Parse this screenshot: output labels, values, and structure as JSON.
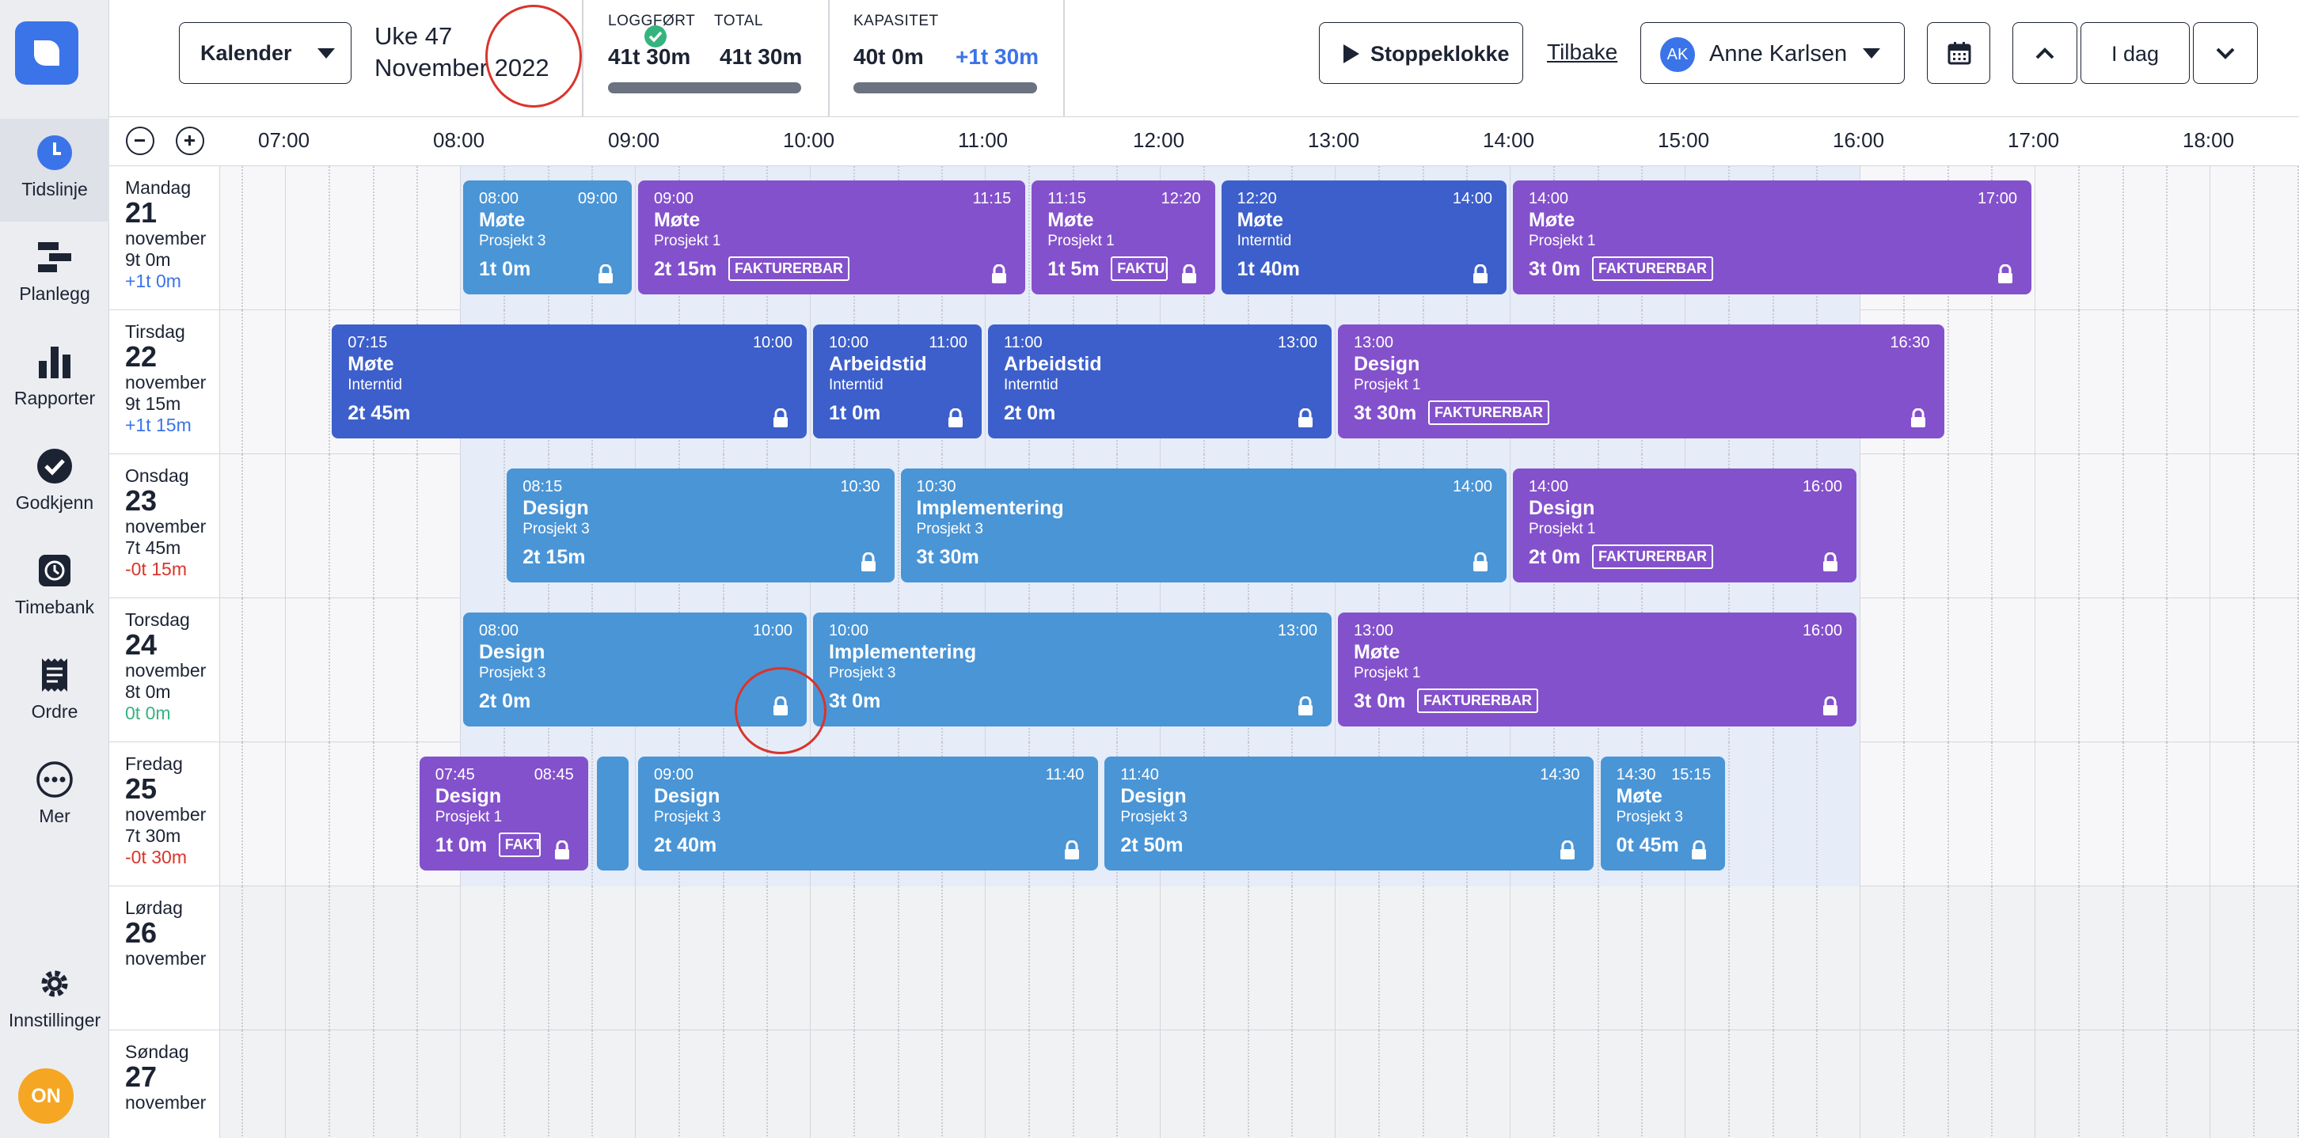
{
  "sidebar": {
    "items": [
      {
        "label": "Tidslinje",
        "icon": "clock-icon",
        "active": true
      },
      {
        "label": "Planlegg",
        "icon": "planner-icon"
      },
      {
        "label": "Rapporter",
        "icon": "bar-chart-icon"
      },
      {
        "label": "Godkjenn",
        "icon": "check-circle-icon"
      },
      {
        "label": "Timebank",
        "icon": "timebank-icon"
      },
      {
        "label": "Ordre",
        "icon": "receipt-icon"
      },
      {
        "label": "Mer",
        "icon": "more-icon"
      }
    ],
    "settings_label": "Innstillinger",
    "user_initials": "ON"
  },
  "topbar": {
    "view_select": "Kalender",
    "week": "Uke 47",
    "month_year": "November 2022",
    "logged_label": "LOGGFØRT",
    "logged_value": "41t 30m",
    "total_label": "TOTAL",
    "total_value": "41t 30m",
    "capacity_label": "KAPASITET",
    "capacity_value": "40t 0m",
    "capacity_diff": "+1t 30m",
    "stopwatch_label": "Stoppeklokke",
    "back_label": "Tilbake",
    "user_initials": "AK",
    "user_name": "Anne Karlsen",
    "today_label": "I dag"
  },
  "timeline": {
    "hours": [
      "07:00",
      "08:00",
      "09:00",
      "10:00",
      "11:00",
      "12:00",
      "13:00",
      "14:00",
      "15:00",
      "16:00",
      "17:00",
      "18:00"
    ]
  },
  "days": [
    {
      "name": "Mandag",
      "num": "21",
      "month": "november",
      "hours": "9t 0m",
      "diff": "+1t 0m",
      "diff_type": "pos",
      "blocks": [
        {
          "start": "08:00",
          "end": "09:00",
          "title": "Møte",
          "project": "Prosjekt 3",
          "duration": "1t 0m",
          "color": "blue",
          "billable": false
        },
        {
          "start": "09:00",
          "end": "11:15",
          "title": "Møte",
          "project": "Prosjekt 1",
          "duration": "2t 15m",
          "color": "purple",
          "billable": true
        },
        {
          "start": "11:15",
          "end": "12:20",
          "title": "Møte",
          "project": "Prosjekt 1",
          "duration": "1t 5m",
          "color": "purple",
          "billable": true
        },
        {
          "start": "12:20",
          "end": "14:00",
          "title": "Møte",
          "project": "Interntid",
          "duration": "1t 40m",
          "color": "navy",
          "billable": false
        },
        {
          "start": "14:00",
          "end": "17:00",
          "title": "Møte",
          "project": "Prosjekt 1",
          "duration": "3t 0m",
          "color": "purple",
          "billable": true
        }
      ]
    },
    {
      "name": "Tirsdag",
      "num": "22",
      "month": "november",
      "hours": "9t 15m",
      "diff": "+1t 15m",
      "diff_type": "pos",
      "blocks": [
        {
          "start": "07:15",
          "end": "10:00",
          "title": "Møte",
          "project": "Interntid",
          "duration": "2t 45m",
          "color": "navy",
          "billable": false
        },
        {
          "start": "10:00",
          "end": "11:00",
          "title": "Arbeidstid",
          "project": "Interntid",
          "duration": "1t 0m",
          "color": "navy",
          "billable": false
        },
        {
          "start": "11:00",
          "end": "13:00",
          "title": "Arbeidstid",
          "project": "Interntid",
          "duration": "2t 0m",
          "color": "navy",
          "billable": false
        },
        {
          "start": "13:00",
          "end": "16:30",
          "title": "Design",
          "project": "Prosjekt 1",
          "duration": "3t 30m",
          "color": "purple",
          "billable": true
        }
      ]
    },
    {
      "name": "Onsdag",
      "num": "23",
      "month": "november",
      "hours": "7t 45m",
      "diff": "-0t 15m",
      "diff_type": "neg",
      "blocks": [
        {
          "start": "08:15",
          "end": "10:30",
          "title": "Design",
          "project": "Prosjekt 3",
          "duration": "2t 15m",
          "color": "blue",
          "billable": false
        },
        {
          "start": "10:30",
          "end": "14:00",
          "title": "Implementering",
          "project": "Prosjekt 3",
          "duration": "3t 30m",
          "color": "blue",
          "billable": false
        },
        {
          "start": "14:00",
          "end": "16:00",
          "title": "Design",
          "project": "Prosjekt 1",
          "duration": "2t 0m",
          "color": "purple",
          "billable": true
        }
      ]
    },
    {
      "name": "Torsdag",
      "num": "24",
      "month": "november",
      "hours": "8t 0m",
      "diff": "0t 0m",
      "diff_type": "zero",
      "blocks": [
        {
          "start": "08:00",
          "end": "10:00",
          "title": "Design",
          "project": "Prosjekt 3",
          "duration": "2t 0m",
          "color": "blue",
          "billable": false
        },
        {
          "start": "10:00",
          "end": "13:00",
          "title": "Implementering",
          "project": "Prosjekt 3",
          "duration": "3t 0m",
          "color": "blue",
          "billable": false
        },
        {
          "start": "13:00",
          "end": "16:00",
          "title": "Møte",
          "project": "Prosjekt 1",
          "duration": "3t 0m",
          "color": "purple",
          "billable": true
        }
      ]
    },
    {
      "name": "Fredag",
      "num": "25",
      "month": "november",
      "hours": "7t 30m",
      "diff": "-0t 30m",
      "diff_type": "neg",
      "blocks": [
        {
          "start": "07:45",
          "end": "08:45",
          "title": "Design",
          "project": "Prosjekt 1",
          "duration": "1t 0m",
          "color": "purple",
          "billable": true
        },
        {
          "start": "",
          "end": "",
          "title": "",
          "project": "",
          "duration": "",
          "color": "blue",
          "billable": false,
          "stub": true
        },
        {
          "start": "09:00",
          "end": "11:40",
          "title": "Design",
          "project": "Prosjekt 3",
          "duration": "2t 40m",
          "color": "blue",
          "billable": false
        },
        {
          "start": "11:40",
          "end": "14:30",
          "title": "Design",
          "project": "Prosjekt 3",
          "duration": "2t 50m",
          "color": "blue",
          "billable": false
        },
        {
          "start": "14:30",
          "end": "15:15",
          "title": "Møte",
          "project": "Prosjekt 3",
          "duration": "0t 45m",
          "color": "blue",
          "billable": false
        }
      ]
    },
    {
      "name": "Lørdag",
      "num": "26",
      "month": "november",
      "hours": "",
      "diff": "",
      "diff_type": "",
      "weekend": true,
      "blocks": []
    },
    {
      "name": "Søndag",
      "num": "27",
      "month": "november",
      "hours": "",
      "diff": "",
      "diff_type": "",
      "weekend": true,
      "blocks": []
    }
  ],
  "billable_label": "FAKTURERBAR",
  "colors": {
    "accent": "#3a74e8",
    "blue_block": "#4a95d6",
    "navy_block": "#3d5fcb",
    "purple_block": "#8451cc",
    "negative": "#d9342b",
    "positive_zero": "#36b37e"
  }
}
